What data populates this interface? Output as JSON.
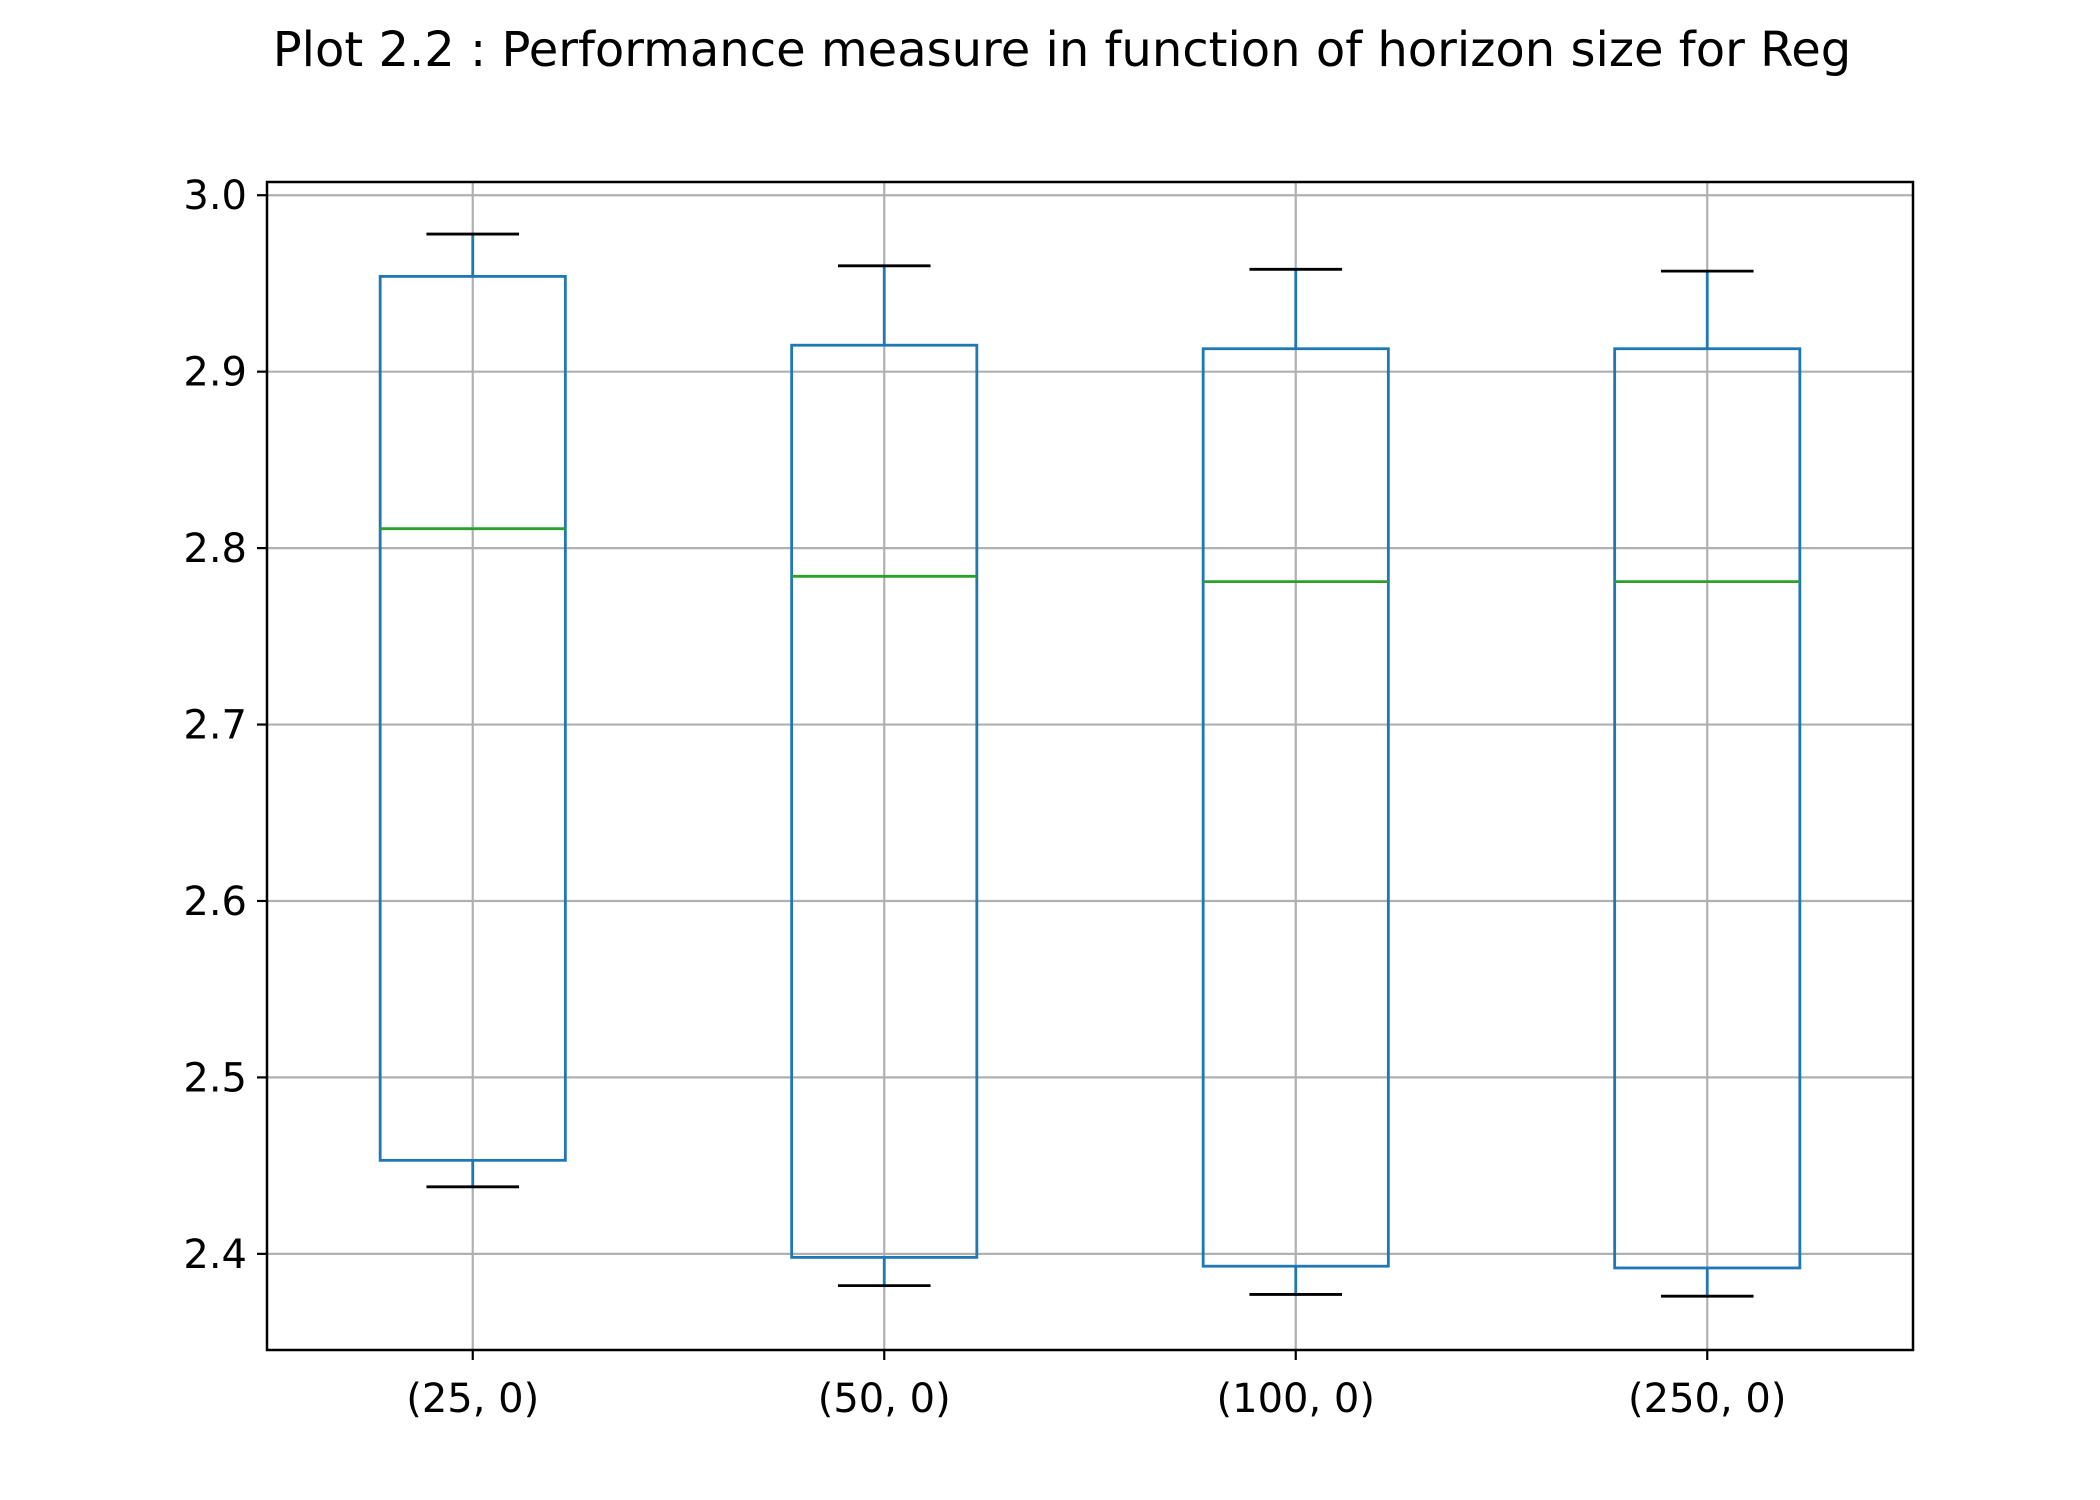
{
  "chart_data": {
    "type": "boxplot",
    "title": "Plot 2.2 : Performance measure in function of horizon size for Reg",
    "xlabel": "",
    "ylabel": "",
    "categories": [
      "(25, 0)",
      "(50, 0)",
      "(100, 0)",
      "(250, 0)"
    ],
    "boxes": [
      {
        "whisker_low": 2.438,
        "q1": 2.453,
        "median": 2.811,
        "q3": 2.954,
        "whisker_high": 2.978
      },
      {
        "whisker_low": 2.382,
        "q1": 2.398,
        "median": 2.784,
        "q3": 2.915,
        "whisker_high": 2.96
      },
      {
        "whisker_low": 2.377,
        "q1": 2.393,
        "median": 2.781,
        "q3": 2.913,
        "whisker_high": 2.958
      },
      {
        "whisker_low": 2.376,
        "q1": 2.392,
        "median": 2.781,
        "q3": 2.913,
        "whisker_high": 2.957
      }
    ],
    "ylim": [
      2.3455,
      3.0075
    ],
    "yticks": [
      2.4,
      2.5,
      2.6,
      2.7,
      2.8,
      2.9,
      3.0
    ],
    "ytick_labels": [
      "2.4",
      "2.5",
      "2.6",
      "2.7",
      "2.8",
      "2.9",
      "3.0"
    ],
    "grid": true,
    "colors": {
      "box": "#1f77b4",
      "median": "#2ca02c",
      "cap": "#000000",
      "grid": "#b0b0b0",
      "axes": "#000000"
    }
  }
}
